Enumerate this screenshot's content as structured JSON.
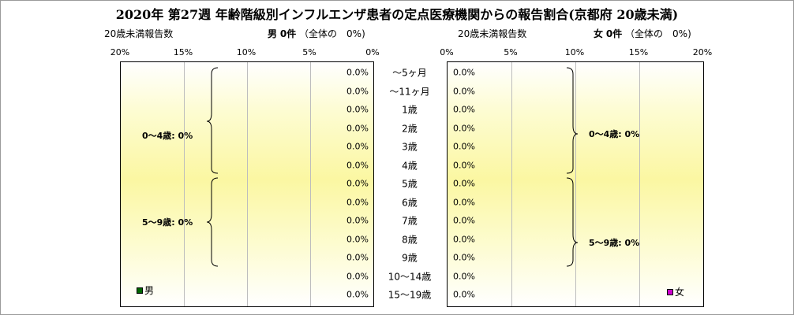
{
  "title": "2020年 第27週 年齢階級別インフルエンザ患者の定点医療機関からの報告割合(京都府 20歳未満)",
  "male": {
    "subtitle_left": "20歳未満報告数",
    "label": "男",
    "count": "0件",
    "share": "（全体の　0%)",
    "legend": "男",
    "color": "#006600",
    "ticks": [
      "20%",
      "15%",
      "10%",
      "5%",
      "0%"
    ],
    "groups": [
      "0～4歳: 0%",
      "5～9歳: 0%"
    ]
  },
  "female": {
    "subtitle_left": "20歳未満報告数",
    "label": "女",
    "count": "0件",
    "share": "（全体の　0%)",
    "legend": "女",
    "color": "#cc00cc",
    "ticks": [
      "0%",
      "5%",
      "10%",
      "15%",
      "20%"
    ],
    "groups": [
      "0～4歳: 0%",
      "5～9歳: 0%"
    ]
  },
  "chart_data": {
    "type": "bar",
    "orientation": "horizontal-butterfly",
    "categories": [
      "～5ヶ月",
      "～11ヶ月",
      "1歳",
      "2歳",
      "3歳",
      "4歳",
      "5歳",
      "6歳",
      "7歳",
      "8歳",
      "9歳",
      "10～14歳",
      "15～19歳"
    ],
    "xlim": [
      0,
      20
    ],
    "grid": true,
    "series": [
      {
        "name": "男",
        "values": [
          0,
          0,
          0,
          0,
          0,
          0,
          0,
          0,
          0,
          0,
          0,
          0,
          0
        ],
        "labels": [
          "0.0%",
          "0.0%",
          "0.0%",
          "0.0%",
          "0.0%",
          "0.0%",
          "0.0%",
          "0.0%",
          "0.0%",
          "0.0%",
          "0.0%",
          "0.0%",
          "0.0%"
        ]
      },
      {
        "name": "女",
        "values": [
          0,
          0,
          0,
          0,
          0,
          0,
          0,
          0,
          0,
          0,
          0,
          0,
          0
        ],
        "labels": [
          "0.0%",
          "0.0%",
          "0.0%",
          "0.0%",
          "0.0%",
          "0.0%",
          "0.0%",
          "0.0%",
          "0.0%",
          "0.0%",
          "0.0%",
          "0.0%",
          "0.0%"
        ]
      }
    ]
  }
}
